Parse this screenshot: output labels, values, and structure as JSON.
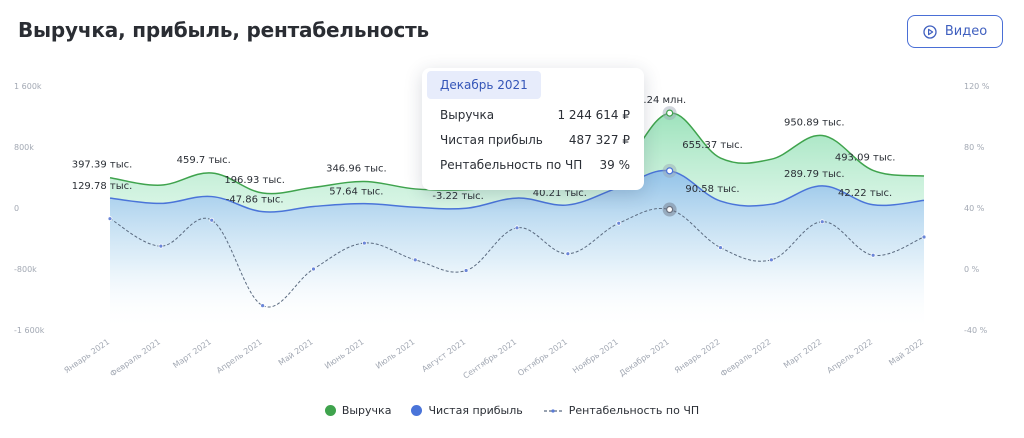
{
  "header": {
    "title": "Выручка, прибыль, рентабельность",
    "video_label": "Видео",
    "video_icon": "play-circle-icon"
  },
  "colors": {
    "revenue": "#3fa34d",
    "revenue_fill": "#9ee3bd",
    "profit": "#4a74d9",
    "profit_fill": "#8fc4e8",
    "margin": "#5b6b80",
    "accent": "#3f5fbf"
  },
  "tooltip": {
    "title": "Декабрь 2021",
    "rows": [
      {
        "label": "Выручка",
        "value": "1 244 614 ₽"
      },
      {
        "label": "Чистая прибыль",
        "value": "487 327 ₽"
      },
      {
        "label": "Рентабельность по ЧП",
        "value": "39 %"
      }
    ]
  },
  "legend": {
    "revenue": "Выручка",
    "profit": "Чистая прибыль",
    "margin": "Рентабельность по ЧП"
  },
  "chart_data": {
    "type": "area",
    "categories": [
      "Январь 2021",
      "Февраль 2021",
      "Март 2021",
      "Апрель 2021",
      "Май 2021",
      "Июнь 2021",
      "Июль 2021",
      "Август 2021",
      "Сентябрь 2021",
      "Октябрь 2021",
      "Ноябрь 2021",
      "Декабрь 2021",
      "Январь 2022",
      "Февраль 2022",
      "Март 2022",
      "Апрель 2022",
      "Май 2022"
    ],
    "y_left": {
      "ticks": [
        1600000,
        800000,
        0,
        -800000,
        -1600000
      ],
      "tick_labels": [
        "1 600k",
        "800k",
        "0",
        "-800k",
        "-1 600k"
      ],
      "ylim": [
        -1600000,
        1600000
      ]
    },
    "y_right": {
      "ticks": [
        120,
        80,
        40,
        0,
        -40
      ],
      "tick_labels": [
        "120 %",
        "80 %",
        "40 %",
        "0 %",
        "-40 %"
      ],
      "ylim": [
        -40,
        120
      ]
    },
    "series": [
      {
        "name": "Выручка",
        "axis": "left",
        "values": [
          397390,
          300000,
          459700,
          196930,
          270000,
          346960,
          250000,
          240000,
          300000,
          320000,
          500000,
          1244614,
          655370,
          640000,
          950890,
          493090,
          420000
        ],
        "labels": [
          "397.39 тыс.",
          null,
          "459.7 тыс.",
          "196.93 тыс.",
          null,
          "346.96 тыс.",
          null,
          null,
          null,
          null,
          null,
          "1.24 млн.",
          "655.37 тыс.",
          null,
          "950.89 тыс.",
          "493.09 тыс.",
          null
        ]
      },
      {
        "name": "Чистая прибыль",
        "axis": "left",
        "values": [
          129780,
          60000,
          150000,
          -47860,
          20000,
          57640,
          10000,
          -3220,
          130000,
          40210,
          270000,
          487327,
          90580,
          50000,
          289790,
          42220,
          100000
        ],
        "labels": [
          "129.78 тыс.",
          null,
          null,
          "-47.86 тыс.",
          null,
          "57.64 тыс.",
          null,
          "-3.22 тыс.",
          null,
          "40.21 тыс.",
          null,
          null,
          "90.58 тыс.",
          null,
          "289.79 тыс.",
          "42.22 тыс.",
          null
        ]
      },
      {
        "name": "Рентабельность по ЧП",
        "axis": "right",
        "values": [
          33,
          15,
          32,
          -24,
          0,
          17,
          6,
          -1,
          27,
          10,
          30,
          39,
          14,
          6,
          31,
          9,
          21
        ],
        "labels": [
          null,
          null,
          null,
          null,
          null,
          null,
          null,
          null,
          null,
          null,
          null,
          null,
          null,
          null,
          null,
          null,
          null
        ]
      }
    ],
    "highlighted_category": "Декабрь 2021",
    "legend_position": "bottom",
    "grid": false
  }
}
